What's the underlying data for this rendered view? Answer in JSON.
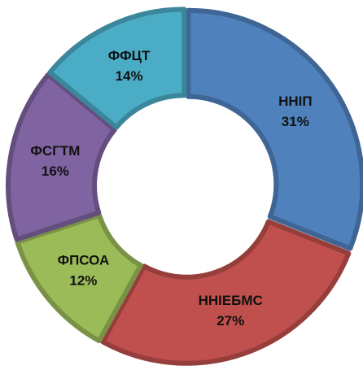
{
  "chart_data": {
    "type": "donut",
    "categories": [
      "ННІП",
      "ННІЕБМС",
      "ФПСОА",
      "ФСГТМ",
      "ФФЦТ"
    ],
    "values": [
      31,
      27,
      12,
      16,
      14
    ],
    "value_labels": [
      "31%",
      "27%",
      "12%",
      "16%",
      "14%"
    ],
    "colors": [
      "#4f81bd",
      "#c0504d",
      "#9bbb59",
      "#8064a2",
      "#4bacc6"
    ]
  }
}
